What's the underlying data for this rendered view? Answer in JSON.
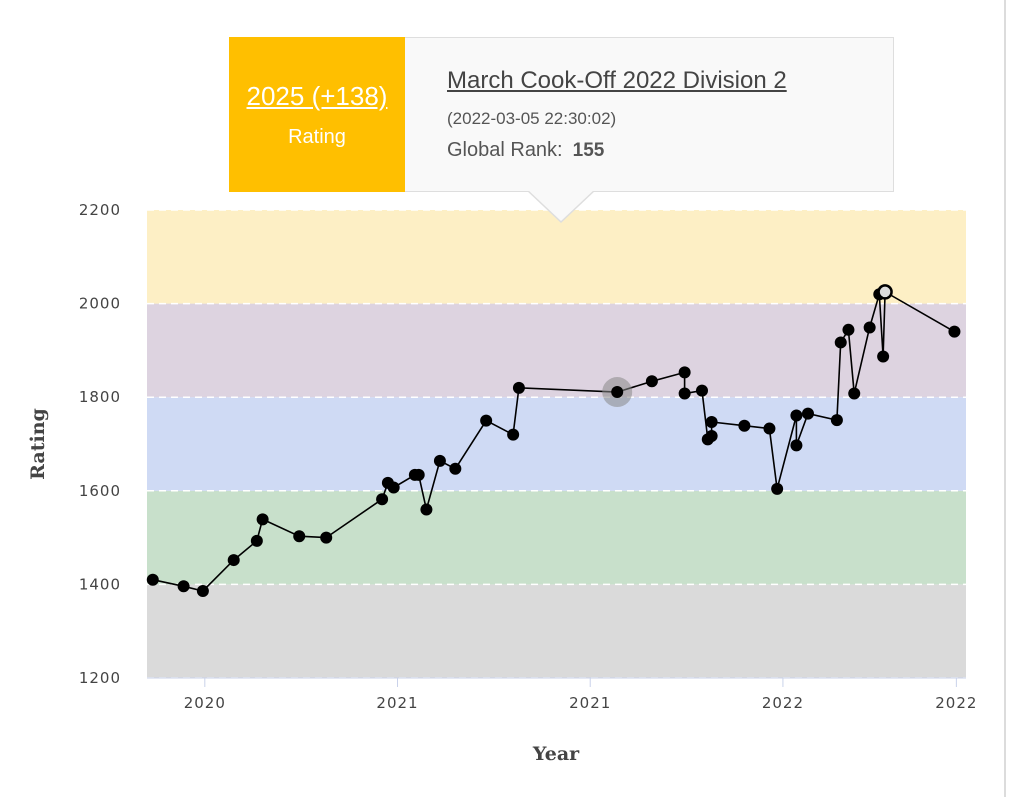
{
  "chart_data": {
    "type": "line",
    "xlabel": "Year",
    "ylabel": "Rating",
    "ylim": [
      1200,
      2200
    ],
    "yticks": [
      1200,
      1400,
      1600,
      1800,
      2000,
      2200
    ],
    "xticks": [
      {
        "label": "2020",
        "x": 2020.0
      },
      {
        "label": "2021",
        "x": 2021.0
      },
      {
        "label": "2021",
        "x": 2022.0
      },
      {
        "label": "2022",
        "x": 2023.0
      },
      {
        "label": "2022",
        "x": 2023.9
      }
    ],
    "xlim": [
      2019.7,
      2023.95
    ],
    "bands": [
      {
        "from": 1200,
        "to": 1400,
        "color": "#dadada"
      },
      {
        "from": 1400,
        "to": 1600,
        "color": "#c8e0cb"
      },
      {
        "from": 1600,
        "to": 1800,
        "color": "#cfdaf4"
      },
      {
        "from": 1800,
        "to": 2000,
        "color": "#ddd3e0"
      },
      {
        "from": 2000,
        "to": 2200,
        "color": "#fdefc5"
      }
    ],
    "points": [
      [
        2019.73,
        1410
      ],
      [
        2019.89,
        1396
      ],
      [
        2019.99,
        1386
      ],
      [
        2020.15,
        1452
      ],
      [
        2020.27,
        1493
      ],
      [
        2020.3,
        1539
      ],
      [
        2020.49,
        1503
      ],
      [
        2020.63,
        1500
      ],
      [
        2020.92,
        1582
      ],
      [
        2020.95,
        1617
      ],
      [
        2020.98,
        1607
      ],
      [
        2021.09,
        1634
      ],
      [
        2021.11,
        1634
      ],
      [
        2021.15,
        1560
      ],
      [
        2021.22,
        1664
      ],
      [
        2021.3,
        1647
      ],
      [
        2021.46,
        1750
      ],
      [
        2021.6,
        1720
      ],
      [
        2021.63,
        1820
      ],
      [
        2022.14,
        1811
      ],
      [
        2022.32,
        1834
      ],
      [
        2022.49,
        1853
      ],
      [
        2022.49,
        1808
      ],
      [
        2022.58,
        1814
      ],
      [
        2022.61,
        1710
      ],
      [
        2022.63,
        1717
      ],
      [
        2022.63,
        1747
      ],
      [
        2022.8,
        1739
      ],
      [
        2022.93,
        1733
      ],
      [
        2022.97,
        1604
      ],
      [
        2023.07,
        1761
      ],
      [
        2023.07,
        1697
      ],
      [
        2023.13,
        1765
      ],
      [
        2023.28,
        1751
      ],
      [
        2023.3,
        1917
      ],
      [
        2023.34,
        1944
      ],
      [
        2023.37,
        1808
      ],
      [
        2023.45,
        1949
      ],
      [
        2023.5,
        2020
      ],
      [
        2023.52,
        1887
      ],
      [
        2023.53,
        2025
      ],
      [
        2023.89,
        1940
      ]
    ],
    "highlight_index": 40,
    "hover_index": 19
  },
  "tooltip": {
    "rating": "2025 (+138)",
    "rating_label": "Rating",
    "contest": "March Cook-Off 2022 Division 2",
    "date": "(2022-03-05 22:30:02)",
    "rank_label": "Global Rank:",
    "rank_value": "155",
    "accent_color": "#ffbf00"
  }
}
